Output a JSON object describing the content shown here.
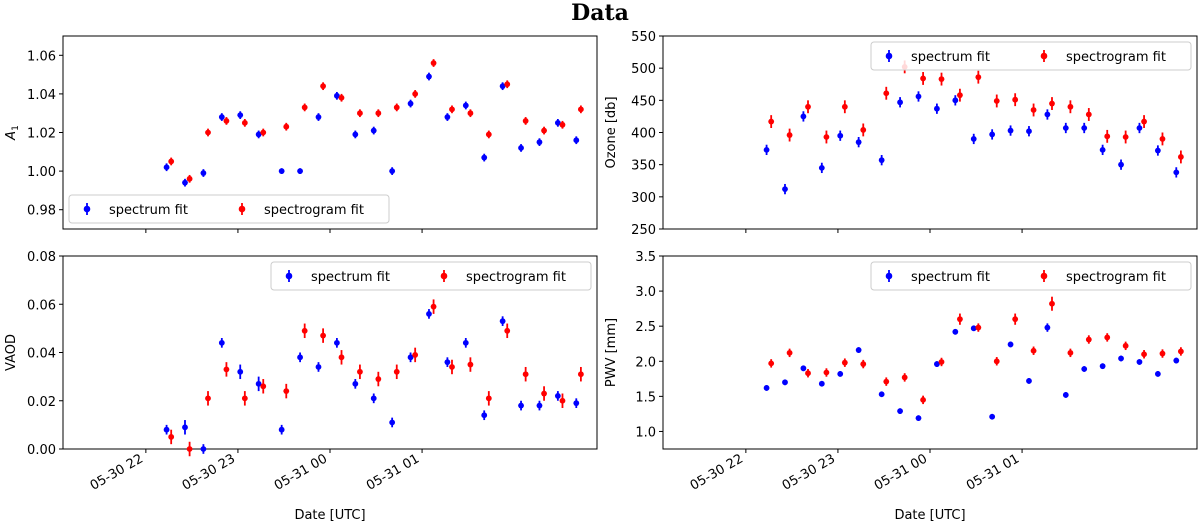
{
  "figure": {
    "title": "Data"
  },
  "colors": {
    "spectrum": "#0000ff",
    "spectrogram": "#ff0000",
    "axis": "#000000",
    "legend_border": "#cccccc"
  },
  "chart_data": [
    {
      "id": "a1",
      "type": "scatter",
      "title": "",
      "xlabel": "",
      "ylabel": "A1",
      "ylabel_main": "A",
      "ylabel_sub": "1",
      "xlim": [
        -1.8,
        9.8
      ],
      "ylim": [
        0.97,
        1.07
      ],
      "x_ticks": [
        0,
        2.0,
        4.0,
        6.0
      ],
      "x_tick_labels": [
        "",
        "",
        "",
        ""
      ],
      "y_ticks": [
        0.98,
        1.0,
        1.02,
        1.04,
        1.06
      ],
      "y_tick_labels": [
        "0.98",
        "1.00",
        "1.02",
        "1.04",
        "1.06"
      ],
      "legend": {
        "location": "lower-left",
        "entries": [
          "spectrum fit",
          "spectrogram fit"
        ]
      },
      "series": [
        {
          "name": "spectrum fit",
          "color": "#0000ff",
          "offset": -0.05,
          "x": [
            0.5,
            0.9,
            1.3,
            1.7,
            2.1,
            2.5,
            3.0,
            3.4,
            3.8,
            4.2,
            4.6,
            5.0,
            5.4,
            5.8,
            6.2,
            6.6,
            7.0,
            7.4,
            7.8,
            8.2,
            8.6,
            9.0,
            9.4
          ],
          "y": [
            1.002,
            0.994,
            0.999,
            1.028,
            1.029,
            1.019,
            1.0,
            1.0,
            1.028,
            1.039,
            1.019,
            1.021,
            1.0,
            1.035,
            1.049,
            1.028,
            1.034,
            1.007,
            1.044,
            1.012,
            1.015,
            1.025,
            1.016
          ],
          "err": [
            0.002,
            0.002,
            0.002,
            0.002,
            0.002,
            0.002,
            0.0015,
            0.0015,
            0.002,
            0.002,
            0.002,
            0.002,
            0.002,
            0.002,
            0.002,
            0.002,
            0.002,
            0.002,
            0.002,
            0.002,
            0.002,
            0.002,
            0.002
          ]
        },
        {
          "name": "spectrogram fit",
          "color": "#ff0000",
          "offset": 0.05,
          "x": [
            0.5,
            0.9,
            1.3,
            1.7,
            2.1,
            2.5,
            3.0,
            3.4,
            3.8,
            4.2,
            4.6,
            5.0,
            5.4,
            5.8,
            6.2,
            6.6,
            7.0,
            7.4,
            7.8,
            8.2,
            8.6,
            9.0,
            9.4
          ],
          "y": [
            1.005,
            0.996,
            1.02,
            1.026,
            1.025,
            1.02,
            1.023,
            1.033,
            1.044,
            1.038,
            1.03,
            1.03,
            1.033,
            1.04,
            1.056,
            1.032,
            1.03,
            1.019,
            1.045,
            1.026,
            1.021,
            1.024,
            1.032
          ],
          "err": [
            0.002,
            0.002,
            0.002,
            0.002,
            0.002,
            0.002,
            0.002,
            0.002,
            0.002,
            0.002,
            0.002,
            0.002,
            0.002,
            0.002,
            0.002,
            0.002,
            0.002,
            0.002,
            0.002,
            0.002,
            0.002,
            0.002,
            0.002
          ]
        }
      ]
    },
    {
      "id": "ozone",
      "type": "scatter",
      "title": "",
      "xlabel": "",
      "ylabel": "Ozone [db]",
      "xlim": [
        -1.8,
        9.8
      ],
      "ylim": [
        250,
        550
      ],
      "x_ticks": [
        0,
        2.0,
        4.0,
        6.0
      ],
      "x_tick_labels": [
        "",
        "",
        "",
        ""
      ],
      "y_ticks": [
        250,
        300,
        350,
        400,
        450,
        500,
        550
      ],
      "y_tick_labels": [
        "250",
        "300",
        "350",
        "400",
        "450",
        "500",
        "550"
      ],
      "legend": {
        "location": "top-right",
        "entries": [
          "spectrum fit",
          "spectrogram fit"
        ]
      },
      "series": [
        {
          "name": "spectrum fit",
          "color": "#0000ff",
          "offset": -0.05,
          "x": [
            0.5,
            0.9,
            1.3,
            1.7,
            2.1,
            2.5,
            3.0,
            3.4,
            3.8,
            4.2,
            4.6,
            5.0,
            5.4,
            5.8,
            6.2,
            6.6,
            7.0,
            7.4,
            7.8,
            8.2,
            8.6,
            9.0,
            9.4
          ],
          "y": [
            373,
            312,
            425,
            345,
            395,
            385,
            357,
            447,
            456,
            437,
            450,
            390,
            397,
            403,
            402,
            428,
            407,
            407,
            373,
            350,
            407,
            372,
            338
          ],
          "err": [
            8,
            8,
            8,
            8,
            8,
            8,
            8,
            8,
            8,
            8,
            8,
            8,
            8,
            8,
            8,
            8,
            8,
            8,
            8,
            8,
            8,
            8,
            8
          ]
        },
        {
          "name": "spectrogram fit",
          "color": "#ff0000",
          "offset": 0.05,
          "x": [
            0.5,
            0.9,
            1.3,
            1.7,
            2.1,
            2.5,
            3.0,
            3.4,
            3.8,
            4.2,
            4.6,
            5.0,
            5.4,
            5.8,
            6.2,
            6.6,
            7.0,
            7.4,
            7.8,
            8.2,
            8.6,
            9.0,
            9.4
          ],
          "y": [
            417,
            396,
            440,
            393,
            440,
            404,
            461,
            502,
            484,
            483,
            458,
            486,
            449,
            451,
            435,
            445,
            440,
            428,
            394,
            393,
            417,
            390,
            362
          ],
          "err": [
            10,
            10,
            10,
            10,
            10,
            10,
            10,
            10,
            10,
            10,
            10,
            10,
            10,
            10,
            10,
            10,
            10,
            10,
            10,
            10,
            10,
            10,
            10
          ]
        }
      ]
    },
    {
      "id": "vaod",
      "type": "scatter",
      "title": "",
      "xlabel": "Date [UTC]",
      "ylabel": "VAOD",
      "xlim": [
        -1.8,
        9.8
      ],
      "ylim": [
        0.0,
        0.08
      ],
      "x_ticks": [
        0,
        2.0,
        4.0,
        6.0
      ],
      "x_tick_labels": [
        "05-30 22",
        "05-30 23",
        "05-31 00",
        "05-31 01"
      ],
      "y_ticks": [
        0.0,
        0.02,
        0.04,
        0.06,
        0.08
      ],
      "y_tick_labels": [
        "0.00",
        "0.02",
        "0.04",
        "0.06",
        "0.08"
      ],
      "legend": {
        "location": "top-right",
        "entries": [
          "spectrum fit",
          "spectrogram fit"
        ]
      },
      "series": [
        {
          "name": "spectrum fit",
          "color": "#0000ff",
          "offset": -0.05,
          "x": [
            0.5,
            0.9,
            1.3,
            1.7,
            2.1,
            2.5,
            3.0,
            3.4,
            3.8,
            4.2,
            4.6,
            5.0,
            5.4,
            5.8,
            6.2,
            6.6,
            7.0,
            7.4,
            7.8,
            8.2,
            8.6,
            9.0,
            9.4
          ],
          "y": [
            0.008,
            0.009,
            0.0,
            0.044,
            0.032,
            0.027,
            0.008,
            0.038,
            0.034,
            0.044,
            0.027,
            0.021,
            0.011,
            0.038,
            0.056,
            0.036,
            0.044,
            0.014,
            0.053,
            0.018,
            0.018,
            0.022,
            0.019
          ],
          "err": [
            0.002,
            0.003,
            0.002,
            0.002,
            0.003,
            0.003,
            0.002,
            0.002,
            0.002,
            0.002,
            0.002,
            0.002,
            0.002,
            0.002,
            0.002,
            0.002,
            0.002,
            0.002,
            0.002,
            0.002,
            0.002,
            0.002,
            0.002
          ]
        },
        {
          "name": "spectrogram fit",
          "color": "#ff0000",
          "offset": 0.05,
          "x": [
            0.5,
            0.9,
            1.3,
            1.7,
            2.1,
            2.5,
            3.0,
            3.4,
            3.8,
            4.2,
            4.6,
            5.0,
            5.4,
            5.8,
            6.2,
            6.6,
            7.0,
            7.4,
            7.8,
            8.2,
            8.6,
            9.0,
            9.4
          ],
          "y": [
            0.005,
            0.0,
            0.021,
            0.033,
            0.021,
            0.026,
            0.024,
            0.049,
            0.047,
            0.038,
            0.032,
            0.029,
            0.032,
            0.039,
            0.059,
            0.034,
            0.035,
            0.021,
            0.049,
            0.031,
            0.023,
            0.02,
            0.031
          ],
          "err": [
            0.003,
            0.003,
            0.003,
            0.003,
            0.003,
            0.003,
            0.003,
            0.003,
            0.003,
            0.003,
            0.003,
            0.003,
            0.003,
            0.003,
            0.003,
            0.003,
            0.003,
            0.003,
            0.003,
            0.003,
            0.003,
            0.003,
            0.003
          ]
        }
      ]
    },
    {
      "id": "pwv",
      "type": "scatter",
      "title": "",
      "xlabel": "Date [UTC]",
      "ylabel": "PWV [mm]",
      "xlim": [
        -1.8,
        9.8
      ],
      "ylim": [
        0.75,
        3.5
      ],
      "x_ticks": [
        0,
        2.0,
        4.0,
        6.0
      ],
      "x_tick_labels": [
        "05-30 22",
        "05-30 23",
        "05-31 00",
        "05-31 01"
      ],
      "y_ticks": [
        1.0,
        1.5,
        2.0,
        2.5,
        3.0,
        3.5
      ],
      "y_tick_labels": [
        "1.0",
        "1.5",
        "2.0",
        "2.5",
        "3.0",
        "3.5"
      ],
      "legend": {
        "location": "top-right",
        "entries": [
          "spectrum fit",
          "spectrogram fit"
        ]
      },
      "series": [
        {
          "name": "spectrum fit",
          "color": "#0000ff",
          "offset": -0.05,
          "x": [
            0.5,
            0.9,
            1.3,
            1.7,
            2.1,
            2.5,
            3.0,
            3.4,
            3.8,
            4.2,
            4.6,
            5.0,
            5.4,
            5.8,
            6.2,
            6.6,
            7.0,
            7.4,
            7.8,
            8.2,
            8.6,
            9.0,
            9.4
          ],
          "y": [
            1.62,
            1.7,
            1.9,
            1.68,
            1.82,
            2.16,
            1.53,
            1.29,
            1.19,
            1.96,
            2.42,
            2.47,
            1.21,
            2.24,
            1.72,
            2.48,
            1.52,
            1.89,
            1.93,
            2.04,
            1.99,
            1.82,
            2.01
          ],
          "err": [
            0.04,
            0.04,
            0.04,
            0.04,
            0.04,
            0.04,
            0.04,
            0.04,
            0.04,
            0.04,
            0.04,
            0.04,
            0.04,
            0.04,
            0.04,
            0.06,
            0.04,
            0.04,
            0.04,
            0.04,
            0.04,
            0.04,
            0.04
          ]
        },
        {
          "name": "spectrogram fit",
          "color": "#ff0000",
          "offset": 0.05,
          "x": [
            0.5,
            0.9,
            1.3,
            1.7,
            2.1,
            2.5,
            3.0,
            3.4,
            3.8,
            4.2,
            4.6,
            5.0,
            5.4,
            5.8,
            6.2,
            6.6,
            7.0,
            7.4,
            7.8,
            8.2,
            8.6,
            9.0,
            9.4
          ],
          "y": [
            1.97,
            2.12,
            1.83,
            1.84,
            1.98,
            1.96,
            1.71,
            1.77,
            1.45,
            1.99,
            2.6,
            2.48,
            2.0,
            2.6,
            2.15,
            2.82,
            2.12,
            2.31,
            2.34,
            2.22,
            2.1,
            2.11,
            2.14
          ],
          "err": [
            0.06,
            0.06,
            0.06,
            0.06,
            0.06,
            0.06,
            0.06,
            0.06,
            0.06,
            0.06,
            0.08,
            0.06,
            0.06,
            0.08,
            0.06,
            0.1,
            0.06,
            0.06,
            0.06,
            0.06,
            0.06,
            0.06,
            0.06
          ]
        }
      ]
    }
  ]
}
